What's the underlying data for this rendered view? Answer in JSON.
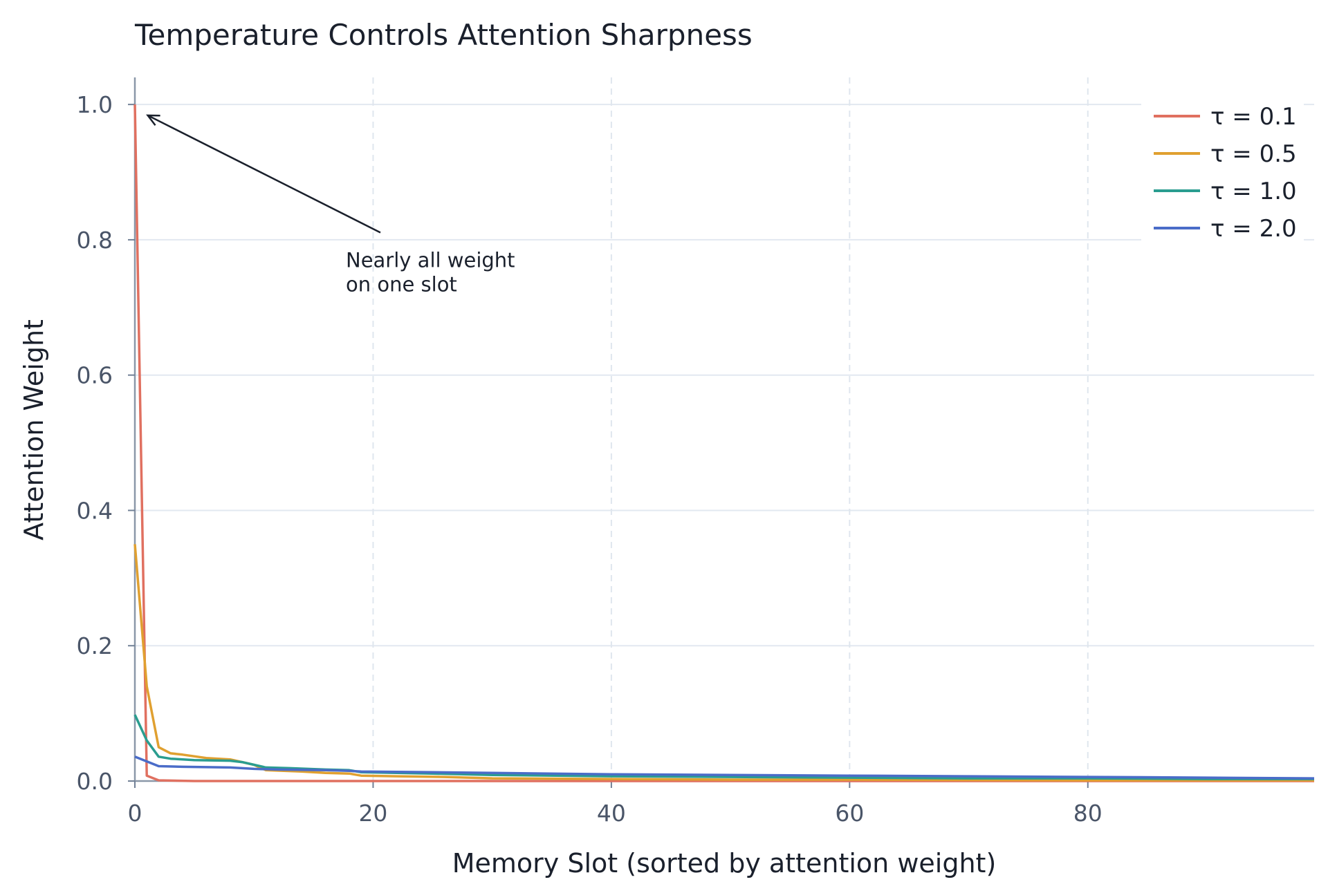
{
  "chart_data": {
    "type": "line",
    "title": "Temperature Controls Attention Sharpness",
    "xlabel": "Memory Slot (sorted by attention weight)",
    "ylabel": "Attention Weight",
    "xlim": [
      0,
      99
    ],
    "ylim": [
      0,
      1.04
    ],
    "x_ticks": [
      0,
      20,
      40,
      60,
      80
    ],
    "x_tick_labels": [
      "0",
      "20",
      "40",
      "60",
      "80"
    ],
    "y_ticks": [
      0.0,
      0.2,
      0.4,
      0.6,
      0.8,
      1.0
    ],
    "y_tick_labels": [
      "0.0",
      "0.2",
      "0.4",
      "0.6",
      "0.8",
      "1.0"
    ],
    "grid": true,
    "legend_position": "top-right",
    "series": [
      {
        "name": "τ = 0.1",
        "color": "#e07060",
        "points": [
          [
            0,
            1.0
          ],
          [
            1,
            0.008
          ],
          [
            2,
            0.001
          ],
          [
            5,
            0.0
          ],
          [
            20,
            0.0
          ],
          [
            40,
            0.0
          ],
          [
            60,
            0.0
          ],
          [
            80,
            0.0
          ],
          [
            99,
            0.0
          ]
        ]
      },
      {
        "name": "τ = 0.5",
        "color": "#e0a030",
        "points": [
          [
            0,
            0.35
          ],
          [
            1,
            0.14
          ],
          [
            2,
            0.05
          ],
          [
            3,
            0.041
          ],
          [
            4,
            0.039
          ],
          [
            6,
            0.034
          ],
          [
            8,
            0.032
          ],
          [
            10,
            0.024
          ],
          [
            11,
            0.016
          ],
          [
            14,
            0.014
          ],
          [
            16,
            0.012
          ],
          [
            18,
            0.011
          ],
          [
            19,
            0.008
          ],
          [
            22,
            0.007
          ],
          [
            26,
            0.006
          ],
          [
            30,
            0.004
          ],
          [
            40,
            0.003
          ],
          [
            50,
            0.002
          ],
          [
            60,
            0.002
          ],
          [
            80,
            0.001
          ],
          [
            99,
            0.001
          ]
        ]
      },
      {
        "name": "τ = 1.0",
        "color": "#2a9d8f",
        "points": [
          [
            0,
            0.098
          ],
          [
            1,
            0.06
          ],
          [
            2,
            0.036
          ],
          [
            3,
            0.033
          ],
          [
            5,
            0.031
          ],
          [
            8,
            0.03
          ],
          [
            9,
            0.028
          ],
          [
            11,
            0.02
          ],
          [
            13,
            0.019
          ],
          [
            16,
            0.017
          ],
          [
            18,
            0.016
          ],
          [
            19,
            0.013
          ],
          [
            25,
            0.011
          ],
          [
            30,
            0.009
          ],
          [
            40,
            0.007
          ],
          [
            50,
            0.006
          ],
          [
            60,
            0.005
          ],
          [
            70,
            0.004
          ],
          [
            80,
            0.004
          ],
          [
            90,
            0.003
          ],
          [
            99,
            0.003
          ]
        ]
      },
      {
        "name": "τ = 2.0",
        "color": "#4a6cc8",
        "points": [
          [
            0,
            0.036
          ],
          [
            1,
            0.029
          ],
          [
            2,
            0.022
          ],
          [
            4,
            0.021
          ],
          [
            8,
            0.02
          ],
          [
            10,
            0.018
          ],
          [
            12,
            0.017
          ],
          [
            16,
            0.016
          ],
          [
            18,
            0.015
          ],
          [
            19,
            0.014
          ],
          [
            25,
            0.013
          ],
          [
            30,
            0.012
          ],
          [
            40,
            0.01
          ],
          [
            50,
            0.009
          ],
          [
            60,
            0.008
          ],
          [
            70,
            0.007
          ],
          [
            80,
            0.006
          ],
          [
            90,
            0.005
          ],
          [
            99,
            0.004
          ]
        ]
      }
    ],
    "annotations": [
      {
        "text_lines": [
          "Nearly all weight",
          "on one slot"
        ],
        "arrow_to": [
          0.5,
          0.99
        ],
        "text_at": [
          18,
          0.78
        ]
      }
    ]
  }
}
